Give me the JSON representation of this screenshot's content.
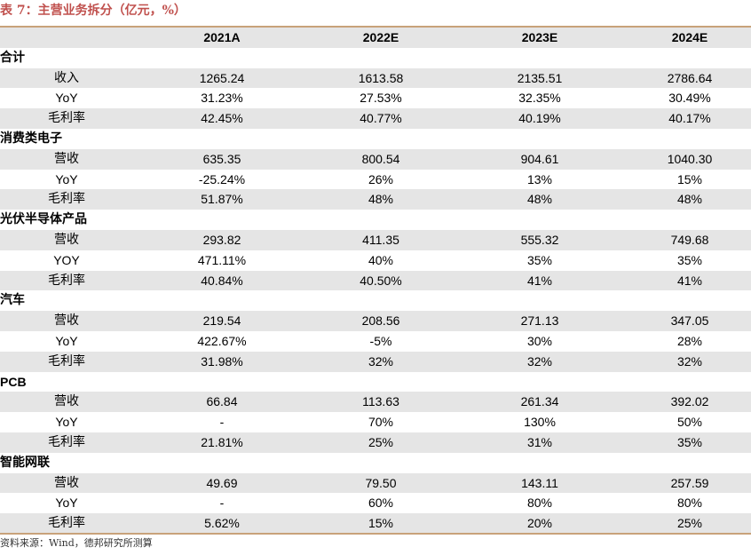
{
  "title": "表 7：主营业务拆分（亿元，%）",
  "header": {
    "label": "",
    "years": [
      "2021A",
      "2022E",
      "2023E",
      "2024E"
    ]
  },
  "rows": [
    {
      "type": "section",
      "label": "合计"
    },
    {
      "type": "data",
      "label": "收入",
      "values": [
        "1265.24",
        "1613.58",
        "2135.51",
        "2786.64"
      ]
    },
    {
      "type": "data",
      "label": "YoY",
      "values": [
        "31.23%",
        "27.53%",
        "32.35%",
        "30.49%"
      ]
    },
    {
      "type": "data",
      "label": "毛利率",
      "values": [
        "42.45%",
        "40.77%",
        "40.19%",
        "40.17%"
      ]
    },
    {
      "type": "section",
      "label": "消费类电子"
    },
    {
      "type": "data",
      "label": "营收",
      "values": [
        "635.35",
        "800.54",
        "904.61",
        "1040.30"
      ]
    },
    {
      "type": "data",
      "label": "YoY",
      "values": [
        "-25.24%",
        "26%",
        "13%",
        "15%"
      ]
    },
    {
      "type": "data",
      "label": "毛利率",
      "values": [
        "51.87%",
        "48%",
        "48%",
        "48%"
      ]
    },
    {
      "type": "section",
      "label": "光伏半导体产品"
    },
    {
      "type": "data",
      "label": "营收",
      "values": [
        "293.82",
        "411.35",
        "555.32",
        "749.68"
      ]
    },
    {
      "type": "data",
      "label": "YOY",
      "values": [
        "471.11%",
        "40%",
        "35%",
        "35%"
      ]
    },
    {
      "type": "data",
      "label": "毛利率",
      "values": [
        "40.84%",
        "40.50%",
        "41%",
        "41%"
      ]
    },
    {
      "type": "section",
      "label": "汽车"
    },
    {
      "type": "data",
      "label": "营收",
      "values": [
        "219.54",
        "208.56",
        "271.13",
        "347.05"
      ]
    },
    {
      "type": "data",
      "label": "YoY",
      "values": [
        "422.67%",
        "-5%",
        "30%",
        "28%"
      ]
    },
    {
      "type": "data",
      "label": "毛利率",
      "values": [
        "31.98%",
        "32%",
        "32%",
        "32%"
      ]
    },
    {
      "type": "section",
      "label": "PCB"
    },
    {
      "type": "data",
      "label": "营收",
      "values": [
        "66.84",
        "113.63",
        "261.34",
        "392.02"
      ]
    },
    {
      "type": "data",
      "label": "YoY",
      "values": [
        "-",
        "70%",
        "130%",
        "50%"
      ]
    },
    {
      "type": "data",
      "label": "毛利率",
      "values": [
        "21.81%",
        "25%",
        "31%",
        "35%"
      ]
    },
    {
      "type": "section",
      "label": "智能网联"
    },
    {
      "type": "data",
      "label": "营收",
      "values": [
        "49.69",
        "79.50",
        "143.11",
        "257.59"
      ]
    },
    {
      "type": "data",
      "label": "YoY",
      "values": [
        "-",
        "60%",
        "80%",
        "80%"
      ]
    },
    {
      "type": "data",
      "label": "毛利率",
      "values": [
        "5.62%",
        "15%",
        "20%",
        "25%"
      ]
    }
  ],
  "source": "资料来源：Wind，德邦研究所测算"
}
